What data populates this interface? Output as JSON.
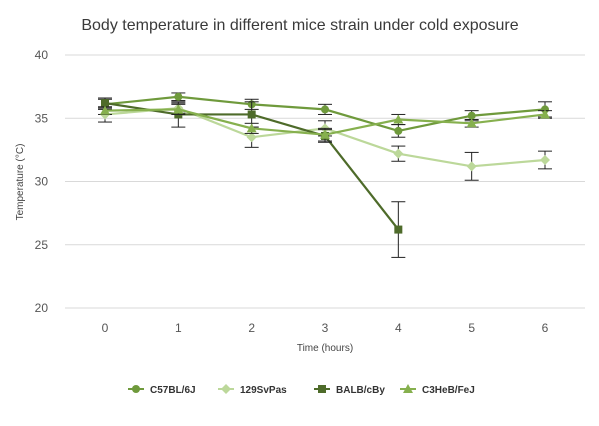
{
  "chart_data": {
    "type": "line",
    "title": "Body temperature in different mice strain under cold exposure",
    "xlabel": "Time (hours)",
    "ylabel": "Temperature (°C)",
    "x": [
      0,
      1,
      2,
      3,
      4,
      5,
      6
    ],
    "ylim": [
      20,
      40
    ],
    "yticks": [
      20,
      25,
      30,
      35,
      40
    ],
    "grid": "horizontal",
    "legend": "bottom",
    "series": [
      {
        "name": "C57BL/6J",
        "marker": "circle",
        "color": "#6f9a3c",
        "values": [
          36.1,
          36.7,
          36.1,
          35.7,
          34.0,
          35.2,
          35.7
        ],
        "error": [
          0.4,
          0.3,
          0.4,
          0.4,
          0.5,
          0.4,
          0.6
        ]
      },
      {
        "name": "129SvPas",
        "marker": "diamond",
        "color": "#bcd89a",
        "values": [
          35.3,
          35.8,
          33.5,
          34.2,
          32.2,
          31.2,
          31.7
        ],
        "error": [
          0.6,
          0.4,
          0.8,
          0.6,
          0.6,
          1.1,
          0.7
        ]
      },
      {
        "name": "BALB/cBy",
        "marker": "square",
        "color": "#4e6b2a",
        "values": [
          36.2,
          35.3,
          35.3,
          33.6,
          26.2,
          null,
          null
        ],
        "error": [
          0.4,
          1.0,
          1.0,
          0.5,
          2.2,
          null,
          null
        ]
      },
      {
        "name": "C3HeB/FeJ",
        "marker": "triangle",
        "color": "#86b04e",
        "values": [
          35.6,
          35.7,
          34.2,
          33.7,
          34.9,
          34.6,
          35.3
        ],
        "error": [
          0.3,
          0.4,
          0.4,
          0.5,
          0.4,
          0.3,
          0.3
        ]
      }
    ]
  }
}
